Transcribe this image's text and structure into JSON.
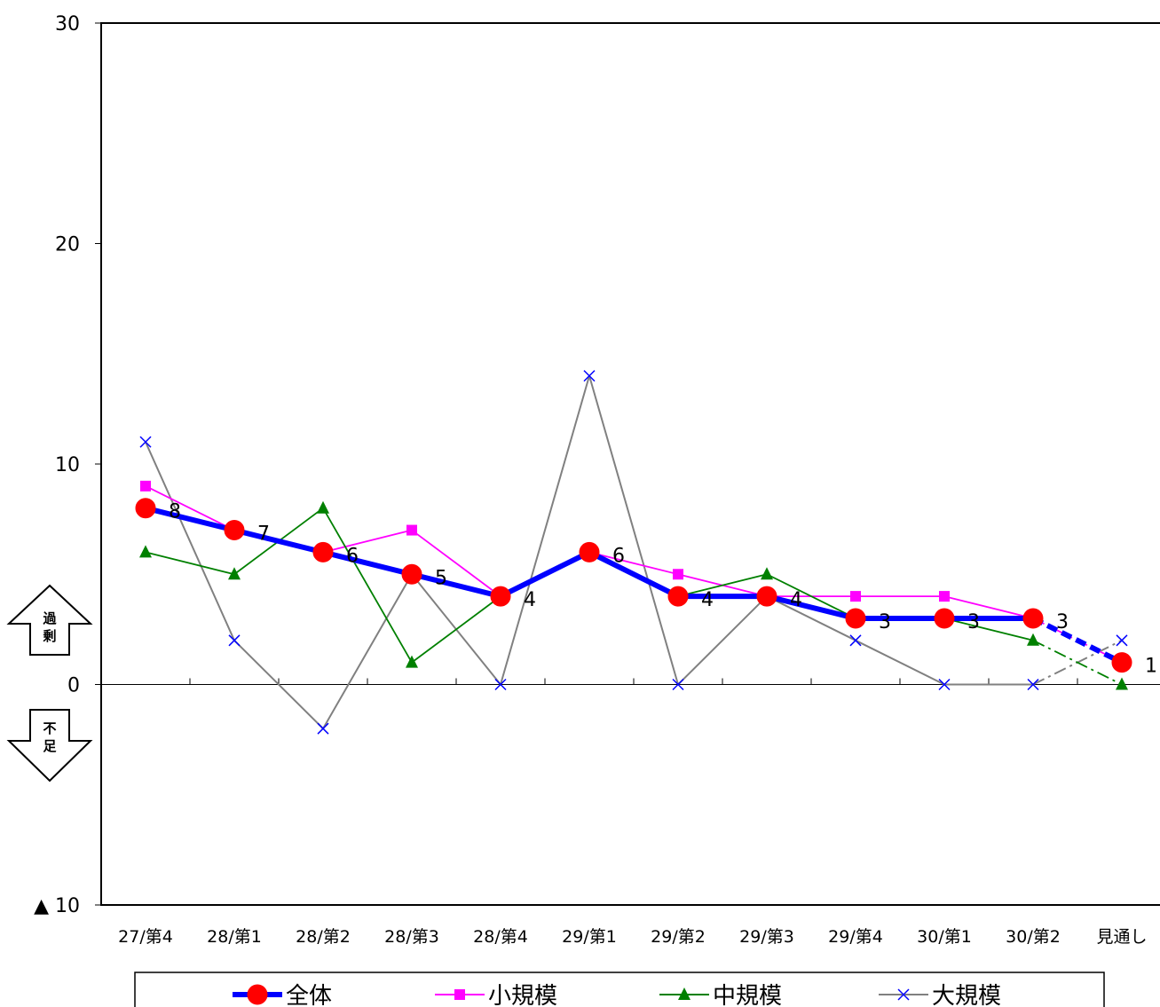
{
  "chart_data": {
    "type": "line",
    "categories": [
      "27/第4",
      "28/第1",
      "28/第2",
      "28/第3",
      "28/第4",
      "29/第1",
      "29/第2",
      "29/第3",
      "29/第4",
      "30/第1",
      "30/第2",
      "見通し"
    ],
    "ylim": [
      -10,
      30
    ],
    "y_ticks": [
      {
        "value": 30,
        "label": "30"
      },
      {
        "value": 20,
        "label": "20"
      },
      {
        "value": 10,
        "label": "10"
      },
      {
        "value": 0,
        "label": "0"
      },
      {
        "value": -10,
        "label": "▲ 10"
      }
    ],
    "grid": false,
    "legend_position": "bottom",
    "series": [
      {
        "name": "全体",
        "color": "#0000ff",
        "marker": "circle",
        "marker_color": "#ff0000",
        "values": [
          8,
          7,
          6,
          5,
          4,
          6,
          4,
          4,
          3,
          3,
          3,
          1
        ],
        "data_labels": [
          "8",
          "7",
          "6",
          "5",
          "4",
          "6",
          "4",
          "4",
          "3",
          "3",
          "3",
          "1"
        ]
      },
      {
        "name": "小規模",
        "color": "#ff00ff",
        "marker": "square",
        "values": [
          9,
          7,
          6,
          7,
          4,
          6,
          5,
          4,
          4,
          4,
          3,
          1
        ]
      },
      {
        "name": "中規模",
        "color": "#008000",
        "marker": "triangle",
        "values": [
          6,
          5,
          8,
          1,
          4,
          6,
          4,
          5,
          3,
          3,
          2,
          0
        ]
      },
      {
        "name": "大規模",
        "color": "#808080",
        "marker": "x",
        "marker_color": "#0000ff",
        "values": [
          11,
          2,
          -2,
          5,
          0,
          14,
          0,
          4,
          2,
          0,
          0,
          2
        ]
      }
    ],
    "annotations": {
      "up_arrow": "過剰",
      "down_arrow": "不足"
    }
  }
}
